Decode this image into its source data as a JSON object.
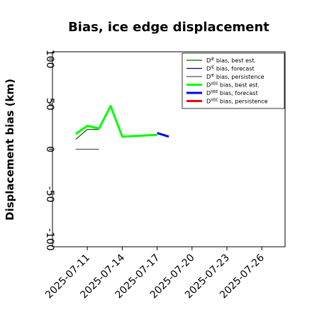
{
  "chart_data": {
    "type": "line",
    "title": "Bias, ice edge displacement",
    "xlabel": "",
    "ylabel": "Displacement bias (km)",
    "ylim": [
      -108,
      108
    ],
    "yticks": [
      -100,
      -50,
      0,
      50,
      100
    ],
    "xlim": [
      "2025-07-08",
      "2025-07-28"
    ],
    "xticks": [
      {
        "date": "2025-07-11",
        "label": "2025-07-11",
        "color": "#000000"
      },
      {
        "date": "2025-07-14",
        "label": "2025-07-14",
        "color": "#000000"
      },
      {
        "date": "2025-07-17",
        "label": "2025-07-17",
        "color": "#228B22"
      },
      {
        "date": "2025-07-20",
        "label": "2025-07-20",
        "color": "#000000"
      },
      {
        "date": "2025-07-23",
        "label": "2025-07-23",
        "color": "#000000"
      },
      {
        "date": "2025-07-26",
        "label": "2025-07-26",
        "color": "#000000"
      }
    ],
    "grid": false,
    "legend_position": "top-right",
    "series": [
      {
        "name_main": "D",
        "name_sup": "IE",
        "name_rest": " bias, best est.",
        "color": "#006400",
        "width": 1.2,
        "points": [
          {
            "x": "2025-07-10",
            "y": 11
          },
          {
            "x": "2025-07-11",
            "y": 22
          },
          {
            "x": "2025-07-12",
            "y": 22
          }
        ]
      },
      {
        "name_main": "D",
        "name_sup": "IE",
        "name_rest": " bias, forecast",
        "color": "#00008B",
        "width": 1.2,
        "points": []
      },
      {
        "name_main": "D",
        "name_sup": "IE",
        "name_rest": " bias, persistence",
        "color": "#555555",
        "width": 1.2,
        "points": [
          {
            "x": "2025-07-10",
            "y": 0
          },
          {
            "x": "2025-07-12",
            "y": 0
          }
        ]
      },
      {
        "name_main": "D",
        "name_sup": "IIEE",
        "name_rest": " bias, best est.",
        "color": "#00FF00",
        "width": 3,
        "points": [
          {
            "x": "2025-07-10",
            "y": 17
          },
          {
            "x": "2025-07-11",
            "y": 26
          },
          {
            "x": "2025-07-12",
            "y": 23
          },
          {
            "x": "2025-07-13",
            "y": 48
          },
          {
            "x": "2025-07-14",
            "y": 14
          },
          {
            "x": "2025-07-17",
            "y": 16
          }
        ]
      },
      {
        "name_main": "D",
        "name_sup": "IIEE",
        "name_rest": " bias, forecast",
        "color": "#0000FF",
        "width": 3,
        "points": [
          {
            "x": "2025-07-17",
            "y": 18
          },
          {
            "x": "2025-07-18",
            "y": 14
          }
        ]
      },
      {
        "name_main": "D",
        "name_sup": "IIEE",
        "name_rest": " bias, persistence",
        "color": "#FF0000",
        "width": 3,
        "points": []
      }
    ]
  }
}
